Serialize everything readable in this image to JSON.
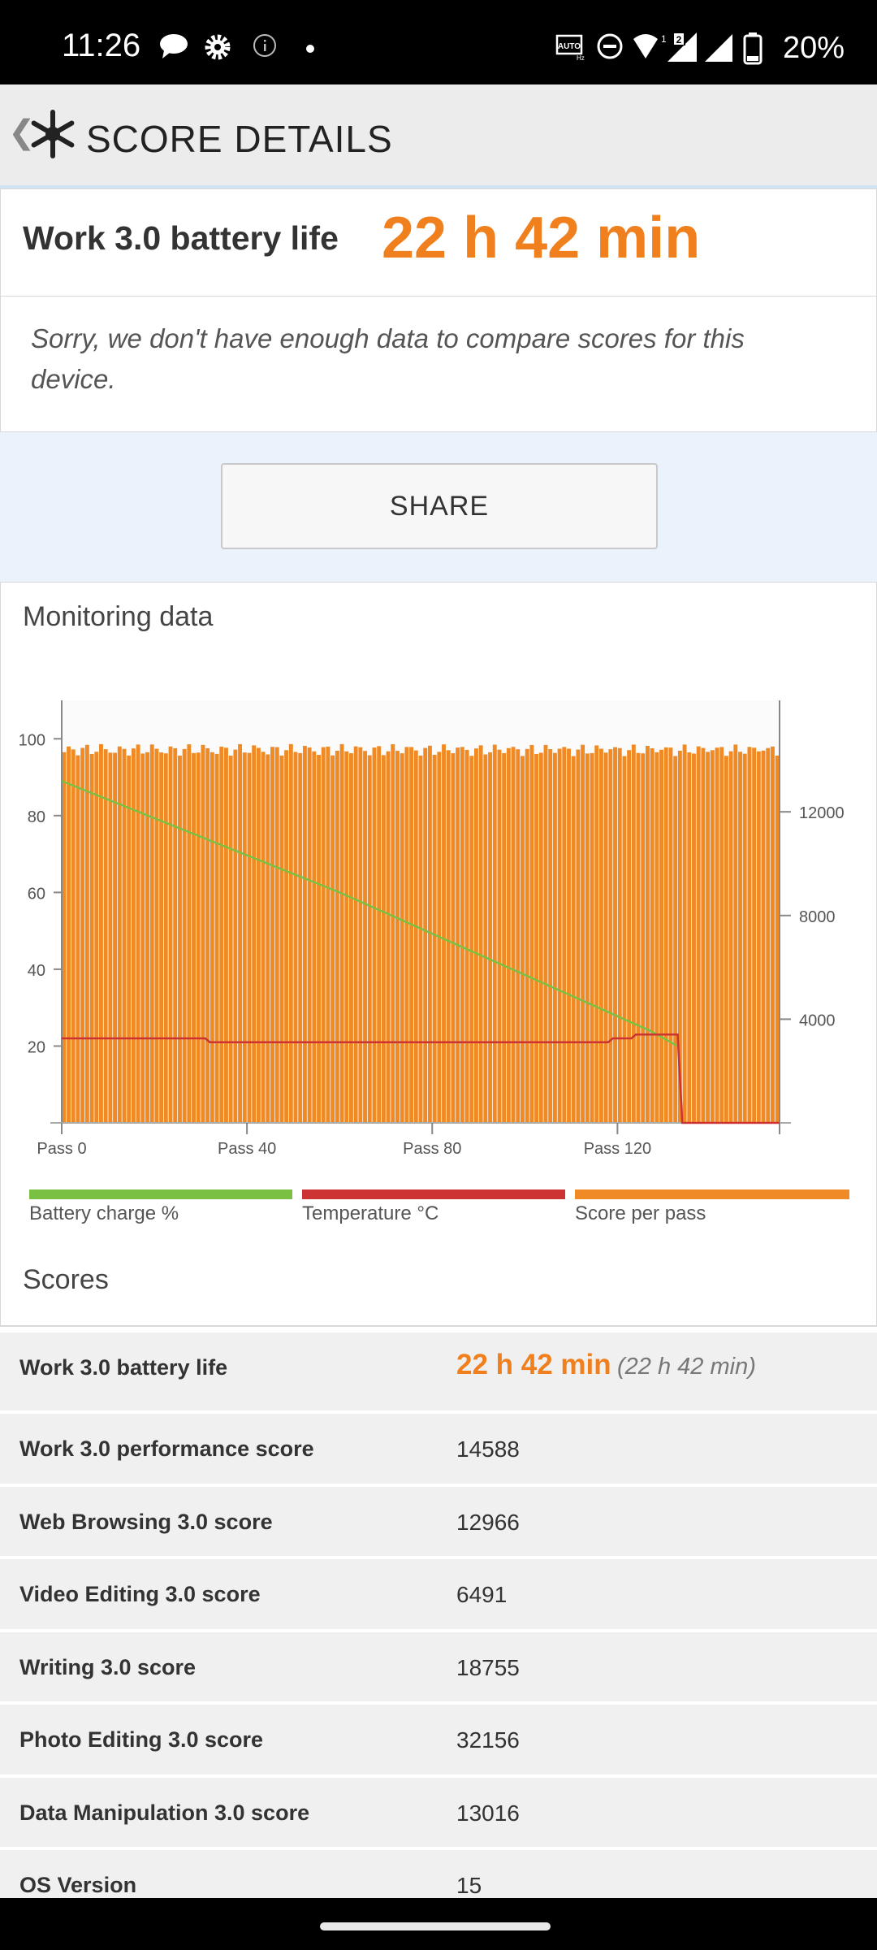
{
  "status": {
    "time": "11:26",
    "battery": "20%",
    "icons": [
      "chat-bubble-icon",
      "settings-gear-icon",
      "info-icon",
      "dot-icon",
      "auto-hz-icon",
      "do-not-disturb-icon",
      "wifi-icon",
      "signal-icon",
      "signal-icon",
      "battery-icon"
    ]
  },
  "header": {
    "back": "❮",
    "title": "SCORE DETAILS"
  },
  "result": {
    "label": "Work 3.0 battery life",
    "value": "22 h 42 min",
    "note": "Sorry, we don't have enough data to compare scores for this device."
  },
  "share_label": "SHARE",
  "monitoring": {
    "title": "Monitoring data"
  },
  "chart_data": {
    "type": "bar",
    "x_tick_labels": [
      "Pass 0",
      "Pass 40",
      "Pass 80",
      "Pass 120"
    ],
    "x_ticks": [
      0,
      40,
      80,
      120
    ],
    "xlim": [
      0,
      155
    ],
    "y_left_ticks": [
      "100",
      "80",
      "60",
      "40",
      "20"
    ],
    "y_left_values": [
      100,
      80,
      60,
      40,
      20
    ],
    "ylim_left": [
      0,
      110
    ],
    "y_right_ticks": [
      "12000",
      "8000",
      "4000"
    ],
    "y_right_values": [
      12000,
      8000,
      4000
    ],
    "ylim_right": [
      0,
      16300
    ],
    "grid": false,
    "legend_position": "bottom",
    "series": [
      {
        "name": "Score per pass",
        "type": "bar",
        "axis": "right",
        "color": "#f08a24",
        "values": [
          14400,
          14450
        ]
      },
      {
        "name": "Battery charge %",
        "type": "line",
        "axis": "left",
        "color": "#7ac143",
        "points": [
          [
            0,
            89
          ],
          [
            60,
            60
          ],
          [
            127,
            24
          ],
          [
            133,
            20
          ]
        ]
      },
      {
        "name": "Temperature °C",
        "type": "line",
        "axis": "left",
        "color": "#cc3333",
        "points": [
          [
            0,
            22
          ],
          [
            31,
            22
          ],
          [
            32,
            21
          ],
          [
            118,
            21
          ],
          [
            119,
            22
          ],
          [
            123,
            22
          ],
          [
            124,
            23
          ],
          [
            133,
            23
          ],
          [
            134,
            0
          ],
          [
            155,
            0
          ]
        ]
      }
    ],
    "pass_count": 155,
    "score_range": [
      14150,
      14650
    ]
  },
  "legend": [
    {
      "label": "Battery charge %",
      "color": "#7ac143"
    },
    {
      "label": "Temperature °C",
      "color": "#cc3333"
    },
    {
      "label": "Score per pass",
      "color": "#f08a24"
    }
  ],
  "scores": {
    "title": "Scores",
    "highlight": {
      "label": "Work 3.0 battery life",
      "value": "22 h 42 min",
      "sub": "(22 h 42 min)"
    },
    "rows": [
      {
        "label": "Work 3.0 performance score",
        "value": "14588"
      },
      {
        "label": "Web Browsing 3.0 score",
        "value": "12966"
      },
      {
        "label": "Video Editing 3.0 score",
        "value": "6491"
      },
      {
        "label": "Writing 3.0 score",
        "value": "18755"
      },
      {
        "label": "Photo Editing 3.0 score",
        "value": "32156"
      },
      {
        "label": "Data Manipulation 3.0 score",
        "value": "13016"
      },
      {
        "label": "OS Version",
        "value": "15"
      }
    ]
  }
}
